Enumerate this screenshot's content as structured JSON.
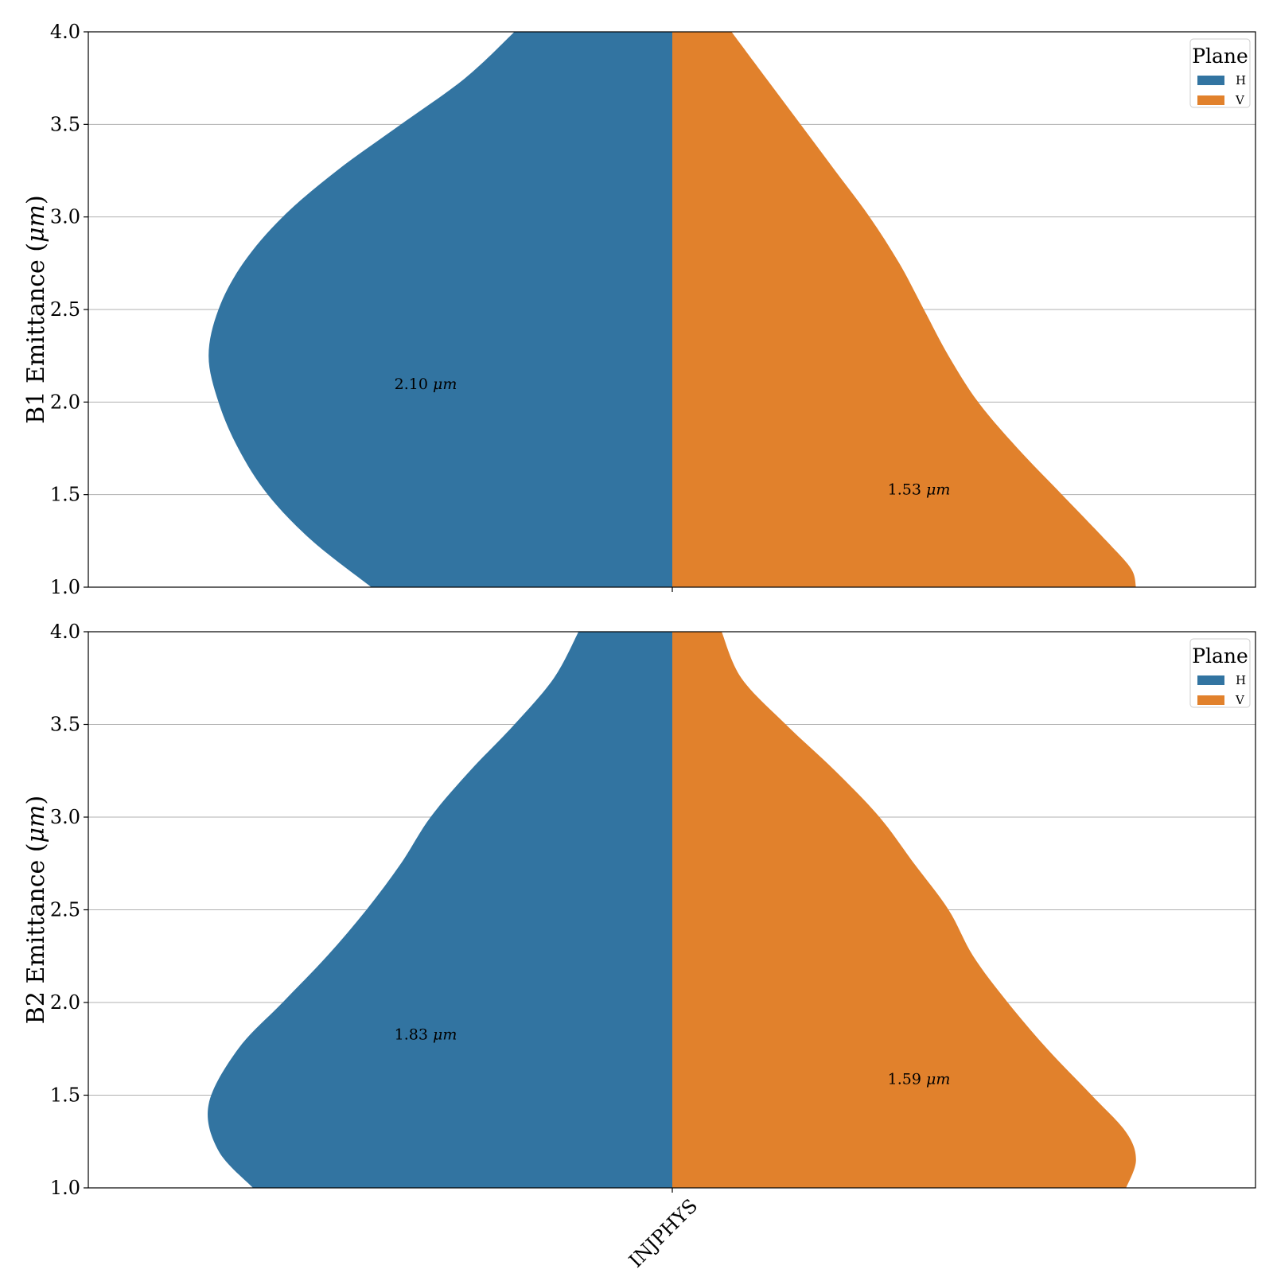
{
  "chart_data": [
    {
      "type": "violin",
      "ylabel": "B1 Emittance ($\\mu m$)",
      "ylim": [
        1.0,
        4.0
      ],
      "yticks": [
        "1.0",
        "1.5",
        "2.0",
        "2.5",
        "3.0",
        "3.5",
        "4.0"
      ],
      "categories": [
        "INJPHYS"
      ],
      "grid": "y",
      "legend": {
        "title": "Plane",
        "placement": "top-right",
        "entries": [
          "H",
          "V"
        ]
      },
      "series": [
        {
          "name": "H",
          "color": "#3274a1",
          "side": "left",
          "label": "2.10 μm",
          "label_y": 2.1,
          "density": [
            [
              1.0,
              0.61
            ],
            [
              1.25,
              0.73
            ],
            [
              1.5,
              0.82
            ],
            [
              1.75,
              0.88
            ],
            [
              2.0,
              0.92
            ],
            [
              2.25,
              0.94
            ],
            [
              2.5,
              0.92
            ],
            [
              2.75,
              0.87
            ],
            [
              3.0,
              0.79
            ],
            [
              3.25,
              0.68
            ],
            [
              3.5,
              0.55
            ],
            [
              3.75,
              0.42
            ],
            [
              4.0,
              0.32
            ]
          ]
        },
        {
          "name": "V",
          "color": "#e1812c",
          "side": "right",
          "label": "1.53 μm",
          "label_y": 1.53,
          "density": [
            [
              1.0,
              0.94
            ],
            [
              1.1,
              0.93
            ],
            [
              1.25,
              0.88
            ],
            [
              1.5,
              0.79
            ],
            [
              1.75,
              0.7
            ],
            [
              2.0,
              0.62
            ],
            [
              2.25,
              0.56
            ],
            [
              2.5,
              0.51
            ],
            [
              2.75,
              0.46
            ],
            [
              3.0,
              0.4
            ],
            [
              3.25,
              0.33
            ],
            [
              3.5,
              0.26
            ],
            [
              3.75,
              0.19
            ],
            [
              4.0,
              0.12
            ]
          ]
        }
      ]
    },
    {
      "type": "violin",
      "ylabel": "B2 Emittance ($\\mu m$)",
      "ylim": [
        1.0,
        4.0
      ],
      "yticks": [
        "1.0",
        "1.5",
        "2.0",
        "2.5",
        "3.0",
        "3.5",
        "4.0"
      ],
      "categories": [
        "INJPHYS"
      ],
      "xticks": [
        "INJPHYS"
      ],
      "grid": "y",
      "legend": {
        "title": "Plane",
        "placement": "top-right",
        "entries": [
          "H",
          "V"
        ]
      },
      "series": [
        {
          "name": "H",
          "color": "#3274a1",
          "side": "left",
          "label": "1.83 μm",
          "label_y": 1.83,
          "density": [
            [
              1.0,
              0.85
            ],
            [
              1.2,
              0.92
            ],
            [
              1.45,
              0.94
            ],
            [
              1.75,
              0.88
            ],
            [
              2.0,
              0.79
            ],
            [
              2.25,
              0.7
            ],
            [
              2.5,
              0.62
            ],
            [
              2.75,
              0.55
            ],
            [
              3.0,
              0.49
            ],
            [
              3.25,
              0.41
            ],
            [
              3.5,
              0.32
            ],
            [
              3.75,
              0.24
            ],
            [
              4.0,
              0.19
            ]
          ]
        },
        {
          "name": "V",
          "color": "#e1812c",
          "side": "right",
          "label": "1.59 μm",
          "label_y": 1.59,
          "density": [
            [
              1.0,
              0.92
            ],
            [
              1.15,
              0.94
            ],
            [
              1.3,
              0.92
            ],
            [
              1.5,
              0.85
            ],
            [
              1.75,
              0.76
            ],
            [
              2.0,
              0.68
            ],
            [
              2.25,
              0.61
            ],
            [
              2.5,
              0.56
            ],
            [
              2.75,
              0.49
            ],
            [
              3.0,
              0.42
            ],
            [
              3.25,
              0.33
            ],
            [
              3.5,
              0.23
            ],
            [
              3.75,
              0.14
            ],
            [
              4.0,
              0.1
            ]
          ]
        }
      ]
    }
  ]
}
